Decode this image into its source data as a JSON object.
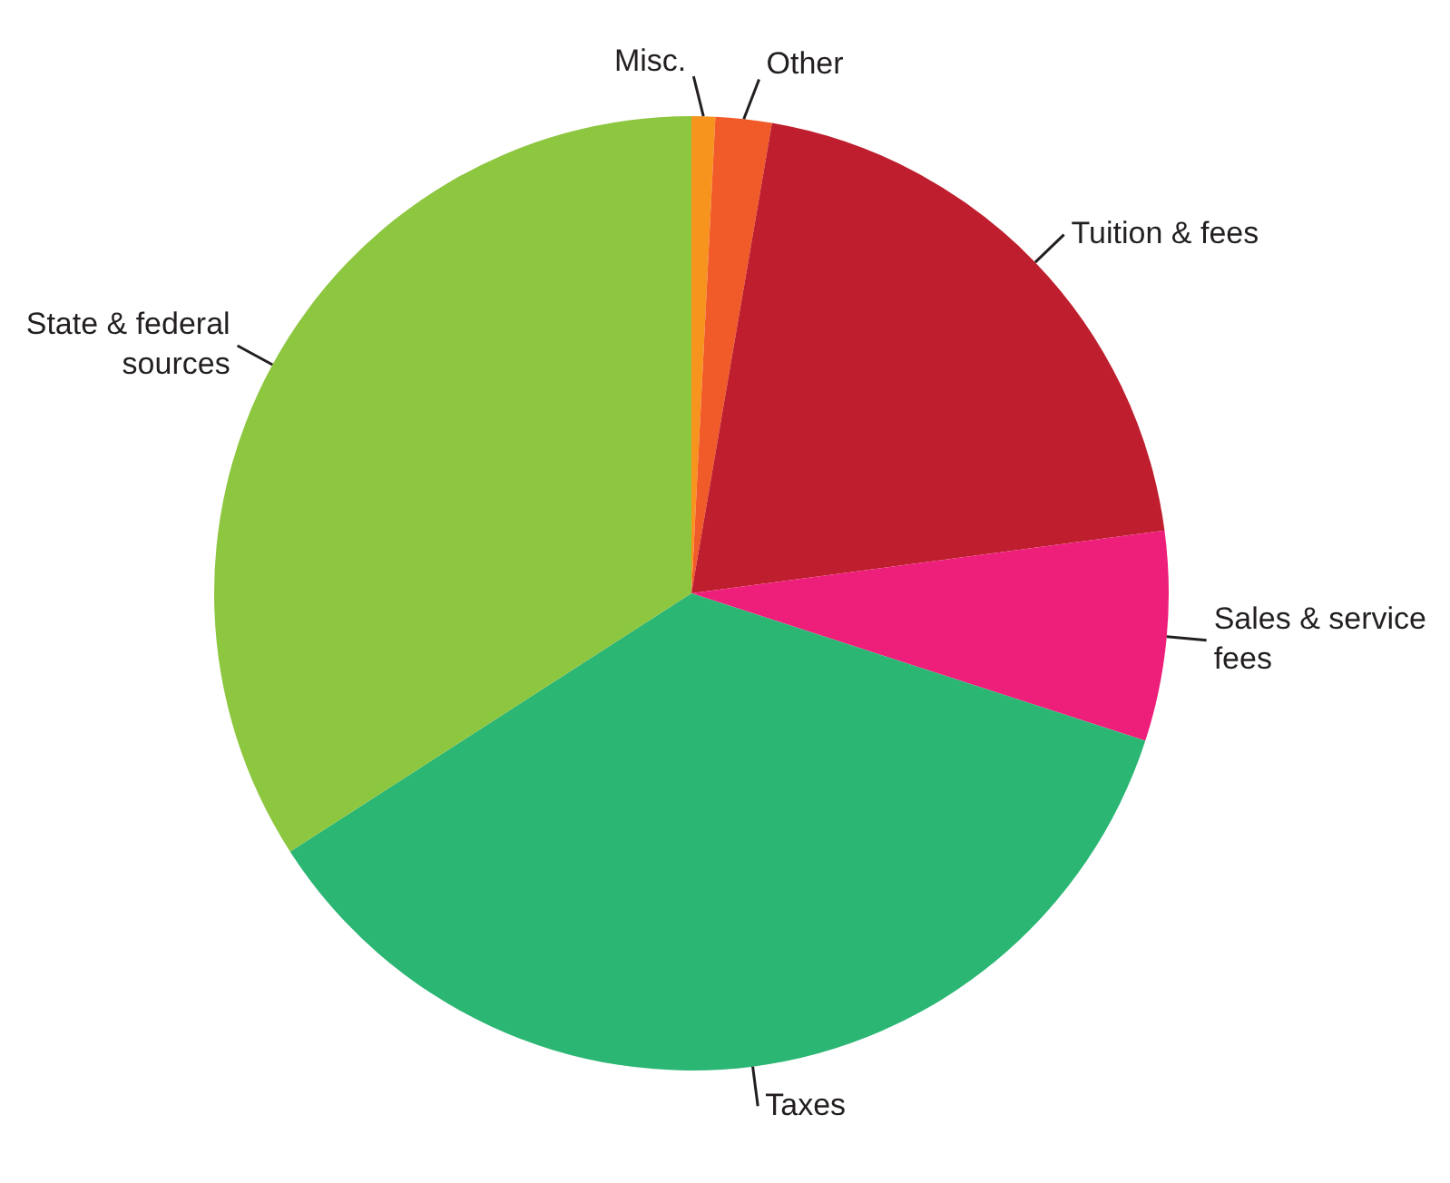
{
  "chart_data": {
    "type": "pie",
    "categories": [
      "Misc.",
      "Other",
      "Tuition & fees",
      "Sales & service fees",
      "Taxes",
      "State & federal sources"
    ],
    "values": [
      0.8,
      1.9,
      20.2,
      7.1,
      35.9,
      34.1
    ],
    "colors": [
      "#f7941d",
      "#f15a29",
      "#be1e2d",
      "#ed1f7b",
      "#2bb673",
      "#8dc63f"
    ]
  }
}
